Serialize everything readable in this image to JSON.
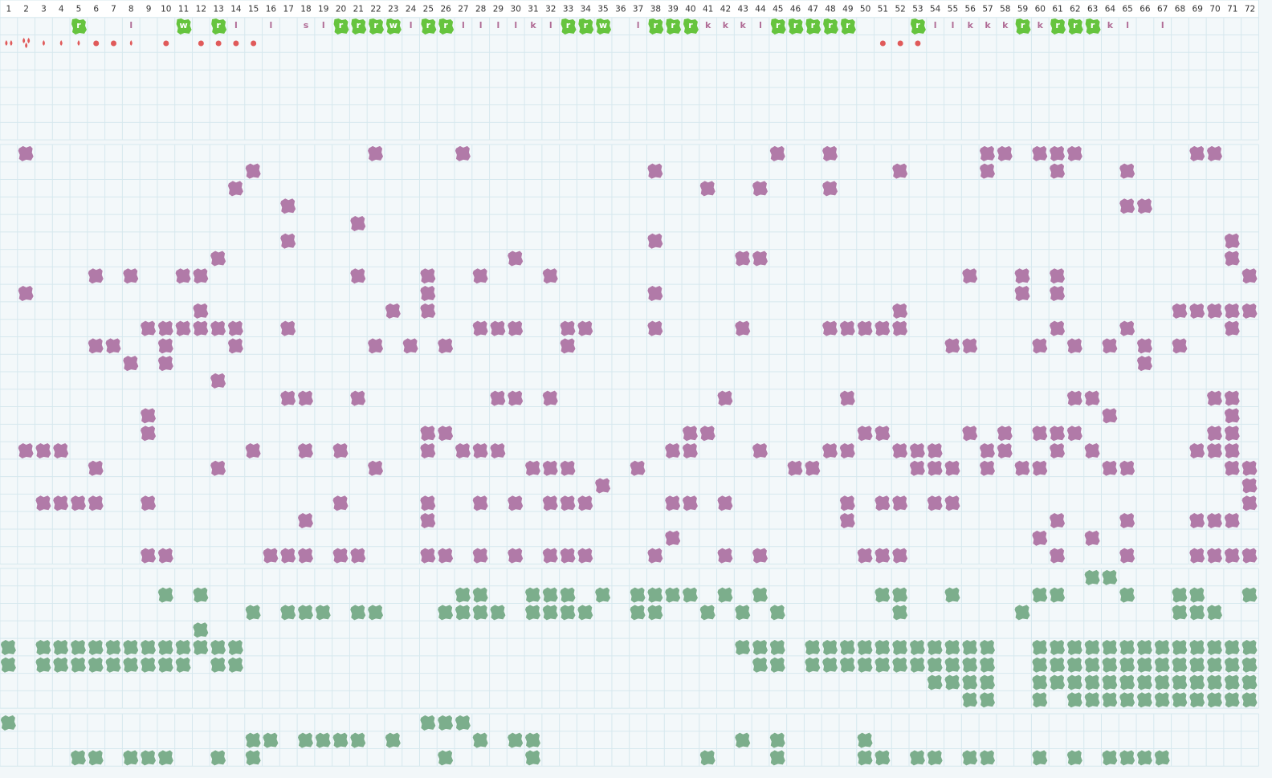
{
  "header": {
    "columns": [
      1,
      2,
      3,
      4,
      5,
      6,
      7,
      8,
      9,
      10,
      11,
      12,
      13,
      14,
      15,
      16,
      17,
      18,
      19,
      20,
      21,
      22,
      23,
      24,
      25,
      26,
      27,
      28,
      29,
      30,
      31,
      32,
      33,
      34,
      35,
      36,
      37,
      38,
      39,
      40,
      41,
      42,
      43,
      44,
      45,
      46,
      47,
      48,
      49,
      50,
      51,
      52,
      53,
      54,
      55,
      56,
      57,
      58,
      59,
      60,
      61,
      62,
      63,
      64,
      65,
      66,
      67,
      68,
      69,
      70,
      71,
      72
    ]
  },
  "tags": [
    null,
    null,
    null,
    null,
    {
      "text": "r",
      "badge": true
    },
    null,
    null,
    "l",
    null,
    null,
    {
      "text": "w",
      "badge": true
    },
    null,
    {
      "text": "r",
      "badge": true
    },
    "l",
    null,
    "l",
    null,
    "s",
    "l",
    {
      "text": "r",
      "badge": true
    },
    {
      "text": "r",
      "badge": true
    },
    {
      "text": "r",
      "badge": true
    },
    {
      "text": "w",
      "badge": true
    },
    "l",
    {
      "text": "r",
      "badge": true
    },
    {
      "text": "r",
      "badge": true
    },
    "l",
    "l",
    "l",
    "l",
    "k",
    "l",
    {
      "text": "r",
      "badge": true
    },
    {
      "text": "r",
      "badge": true
    },
    {
      "text": "w",
      "badge": true
    },
    null,
    "l",
    {
      "text": "r",
      "badge": true
    },
    {
      "text": "r",
      "badge": true
    },
    {
      "text": "r",
      "badge": true
    },
    "k",
    "k",
    "k",
    "l",
    {
      "text": "r",
      "badge": true
    },
    {
      "text": "r",
      "badge": true
    },
    {
      "text": "r",
      "badge": true
    },
    {
      "text": "r",
      "badge": true
    },
    {
      "text": "r",
      "badge": true
    },
    null,
    null,
    null,
    {
      "text": "r",
      "badge": true
    },
    "l",
    "l",
    "k",
    "k",
    "k",
    {
      "text": "r",
      "badge": true
    },
    "k",
    {
      "text": "r",
      "badge": true
    },
    {
      "text": "r",
      "badge": true
    },
    {
      "text": "r",
      "badge": true
    },
    "k",
    "l",
    null,
    "l",
    null,
    null,
    null,
    null,
    null
  ]
}
